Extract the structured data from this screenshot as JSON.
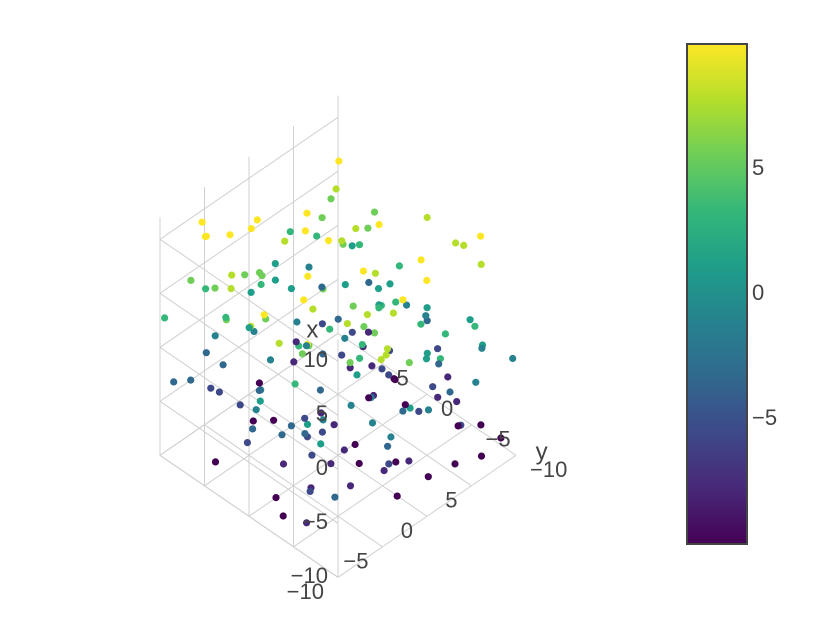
{
  "chart_data": {
    "type": "scatter3d",
    "axes": {
      "x": {
        "label": "x",
        "ticks": [
          -10,
          -5,
          0,
          5
        ],
        "tick_labels": [
          "−10",
          "−5",
          "0",
          "5"
        ],
        "range": [
          -10,
          10
        ]
      },
      "y": {
        "label": "y",
        "ticks": [
          -10,
          -5,
          0,
          5
        ],
        "tick_labels": [
          "−10",
          "−5",
          "0",
          "5"
        ],
        "range": [
          -10,
          10
        ]
      },
      "z": {
        "label": "",
        "ticks": [
          -10,
          -5,
          0,
          5,
          10
        ],
        "tick_labels": [
          "−10",
          "−5",
          "0",
          "5",
          "10"
        ],
        "range": [
          -10,
          12
        ]
      }
    },
    "grid": true,
    "colorscale": "Viridis",
    "colorbar": {
      "ticks": [
        -5,
        0,
        5
      ],
      "tick_labels": [
        "−5",
        "0",
        "5"
      ],
      "range": [
        -10,
        10
      ],
      "position": "right"
    },
    "colors": {
      "viridis": [
        "#440154",
        "#482878",
        "#3e4989",
        "#31688e",
        "#26828e",
        "#1f9e89",
        "#35b779",
        "#6ece58",
        "#b5de2b",
        "#fde725"
      ]
    },
    "z_levels": [
      -9,
      -7,
      -5,
      -3,
      -1,
      1,
      3,
      5,
      7,
      9
    ],
    "points_per_level": 20,
    "xy_range": [
      -10,
      10
    ],
    "seed": 7
  }
}
